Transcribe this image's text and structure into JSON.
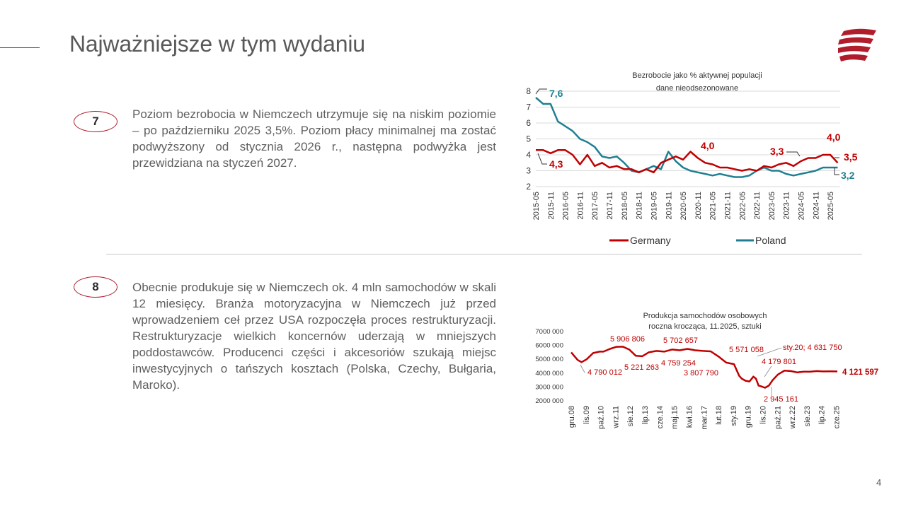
{
  "page": {
    "title": "Najważniejsze w tym wydaniu",
    "page_number": "4"
  },
  "colors": {
    "accent": "#b11d2b",
    "germany": "#c00000",
    "poland": "#1f7f91",
    "text": "#5f5f5f"
  },
  "logo": {
    "icon": "flag-stripes-icon"
  },
  "items": [
    {
      "number": "7",
      "text": "Poziom bezrobocia w Niemczech utrzymuje się na niskim poziomie – po październiku 2025 3,5%. Poziom płacy minimalnej ma zostać podwyższony od stycznia 2026 r., następna podwyżka jest przewidziana na styczeń 2027."
    },
    {
      "number": "8",
      "text": "Obecnie produkuje się w Niemczech ok. 4 mln samochodów w skali 12 miesięcy. Branża motoryzacyjna w Niemczech już przed wprowadzeniem ceł przez USA rozpoczęła proces restrukturyzacji. Restrukturyzacje wielkich koncernów uderzają w mniejszych poddostawców. Producenci części i akcesoriów szukają miejsc inwestycyjnych o tańszych kosztach (Polska, Czechy, Bułgaria, Maroko)."
    }
  ],
  "chart_data": [
    {
      "type": "line",
      "title": "Bezrobocie jako % aktywnej populacji",
      "subtitle": "dane nieodsezonowane",
      "ylim": [
        2,
        8
      ],
      "yticks": [
        "2",
        "3",
        "4",
        "5",
        "6",
        "7",
        "8"
      ],
      "xlim": [
        0,
        124
      ],
      "categories": [
        "2015-05",
        "2015-11",
        "2016-05",
        "2016-11",
        "2017-05",
        "2017-11",
        "2018-05",
        "2018-11",
        "2019-05",
        "2019-11",
        "2020-05",
        "2020-11",
        "2021-05",
        "2021-11",
        "2022-05",
        "2022-11",
        "2023-05",
        "2023-11",
        "2024-05",
        "2024-11",
        "2025-05"
      ],
      "series": [
        {
          "name": "Germany",
          "x": [
            0,
            3,
            6,
            9,
            12,
            15,
            18,
            21,
            24,
            27,
            30,
            33,
            36,
            39,
            42,
            45,
            48,
            51,
            54,
            57,
            60,
            63,
            66,
            69,
            72,
            75,
            78,
            81,
            84,
            87,
            90,
            93,
            96,
            99,
            102,
            105,
            108,
            111,
            114,
            117,
            120,
            123
          ],
          "values": [
            4.3,
            4.3,
            4.1,
            4.3,
            4.3,
            4.0,
            3.4,
            4.0,
            3.3,
            3.5,
            3.2,
            3.3,
            3.1,
            3.1,
            2.9,
            3.1,
            2.9,
            3.5,
            3.7,
            3.9,
            3.7,
            4.2,
            3.8,
            3.5,
            3.4,
            3.2,
            3.2,
            3.1,
            3.0,
            3.1,
            3.0,
            3.3,
            3.2,
            3.4,
            3.5,
            3.3,
            3.6,
            3.8,
            3.8,
            4.0,
            4.0,
            3.5
          ]
        },
        {
          "name": "Poland",
          "x": [
            0,
            3,
            6,
            9,
            12,
            15,
            18,
            21,
            24,
            27,
            30,
            33,
            36,
            39,
            42,
            45,
            48,
            51,
            54,
            57,
            60,
            63,
            66,
            69,
            72,
            75,
            78,
            81,
            84,
            87,
            90,
            93,
            96,
            99,
            102,
            105,
            108,
            111,
            114,
            117,
            120,
            123
          ],
          "values": [
            7.6,
            7.2,
            7.2,
            6.1,
            5.8,
            5.5,
            5.0,
            4.8,
            4.5,
            3.9,
            3.8,
            3.9,
            3.5,
            3.0,
            2.9,
            3.1,
            3.3,
            3.1,
            4.2,
            3.6,
            3.2,
            3.0,
            2.9,
            2.8,
            2.7,
            2.8,
            2.7,
            2.6,
            2.6,
            2.7,
            3.0,
            3.2,
            3.0,
            3.0,
            2.8,
            2.7,
            2.8,
            2.9,
            3.0,
            3.2,
            3.2,
            3.2
          ]
        }
      ],
      "annotations": [
        {
          "text": "7,6",
          "series": "Poland"
        },
        {
          "text": "4,3",
          "series": "Germany"
        },
        {
          "text": "4,0",
          "series": "Germany"
        },
        {
          "text": "3,3",
          "series": "Germany"
        },
        {
          "text": "4,0",
          "series": "Germany"
        },
        {
          "text": "3,5",
          "series": "Germany"
        },
        {
          "text": "3,2",
          "series": "Poland"
        }
      ],
      "legend": [
        "Germany",
        "Poland"
      ],
      "legend_position": "bottom"
    },
    {
      "type": "line",
      "title": "Produkcja samochodów osobowych",
      "subtitle": "roczna krocząca, 11.2025, sztuki",
      "ylim": [
        2000000,
        7000000
      ],
      "yticks": [
        "2000 000",
        "3000 000",
        "4000 000",
        "5000 000",
        "6000 000",
        "7000 000"
      ],
      "xlim": [
        0,
        206
      ],
      "categories": [
        "gru.08",
        "lis.09",
        "paź.10",
        "wrz.11",
        "sie.12",
        "lip.13",
        "cze.14",
        "maj.15",
        "kwi.16",
        "mar.17",
        "lut.18",
        "sty.19",
        "gru.19",
        "lis.20",
        "paź.21",
        "wrz.22",
        "sie.23",
        "lip.24",
        "cze.25"
      ],
      "series": [
        {
          "name": "Produkcja samochodów osobowych",
          "x": [
            0,
            5,
            8,
            12,
            17,
            22,
            25,
            30,
            35,
            40,
            45,
            50,
            55,
            60,
            66,
            72,
            78,
            84,
            90,
            96,
            102,
            108,
            114,
            120,
            126,
            130,
            132,
            135,
            138,
            141,
            143,
            145,
            147,
            150,
            153,
            156,
            160,
            165,
            170,
            175,
            180,
            185,
            190,
            195,
            200,
            206
          ],
          "values": [
            5500000,
            4950000,
            4790012,
            5000000,
            5450000,
            5550000,
            5550000,
            5750000,
            5900000,
            5906806,
            5700000,
            5250000,
            5221263,
            5500000,
            5600000,
            5550000,
            5702657,
            5650000,
            5750000,
            5650000,
            5600000,
            5571058,
            5200000,
            4759254,
            4650000,
            3807790,
            3600000,
            3450000,
            3400000,
            3750000,
            3600000,
            3100000,
            3050000,
            2945161,
            3100000,
            3500000,
            3900000,
            4179801,
            4150000,
            4050000,
            4100000,
            4100000,
            4150000,
            4120000,
            4130000,
            4121597
          ]
        }
      ],
      "annotations": [
        "4 790 012",
        "5 906 806",
        "5 221 263",
        "5 702 657",
        "4 759 254",
        "5 571 058",
        "3 807 790",
        "4 179 801",
        "sty.20; 4 631 750",
        "2 945 161",
        "4 121 597"
      ]
    }
  ]
}
